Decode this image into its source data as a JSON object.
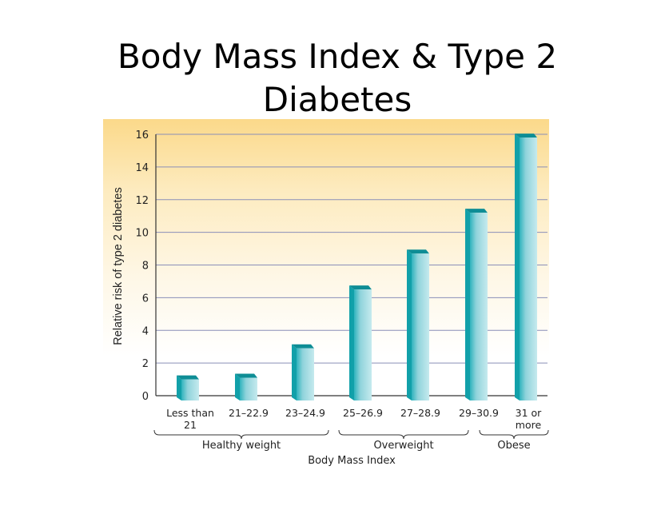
{
  "slide": {
    "title_line1": "Body Mass Index & Type 2",
    "title_line2": "Diabetes"
  },
  "colors": {
    "bar_light": "#b7e4ea",
    "bar_mid": "#4fbfc8",
    "bar_dark": "#11a0a9",
    "bar_top": "#0e8d95",
    "gridline": "#8a8fb8",
    "axis": "#333333"
  },
  "chart_data": {
    "type": "bar",
    "title": "Body Mass Index & Type 2 Diabetes",
    "xlabel": "Body Mass Index",
    "ylabel": "Relative risk of type 2 diabetes",
    "ylim": [
      0,
      16
    ],
    "yticks": [
      0,
      2,
      4,
      6,
      8,
      10,
      12,
      14,
      16
    ],
    "grid": true,
    "categories": [
      [
        "Less than",
        "21"
      ],
      [
        "21–22.9"
      ],
      [
        "23–24.9"
      ],
      [
        "25–26.9"
      ],
      [
        "27–28.9"
      ],
      [
        "29–30.9"
      ],
      [
        "31 or",
        "more"
      ]
    ],
    "values": [
      1.0,
      1.1,
      2.9,
      6.5,
      8.7,
      11.2,
      15.8
    ],
    "groups": [
      {
        "label": "Healthy weight",
        "start": 0,
        "end": 2
      },
      {
        "label": "Overweight",
        "start": 3,
        "end": 4
      },
      {
        "label": "Obese",
        "start": 5,
        "end": 6
      }
    ]
  }
}
